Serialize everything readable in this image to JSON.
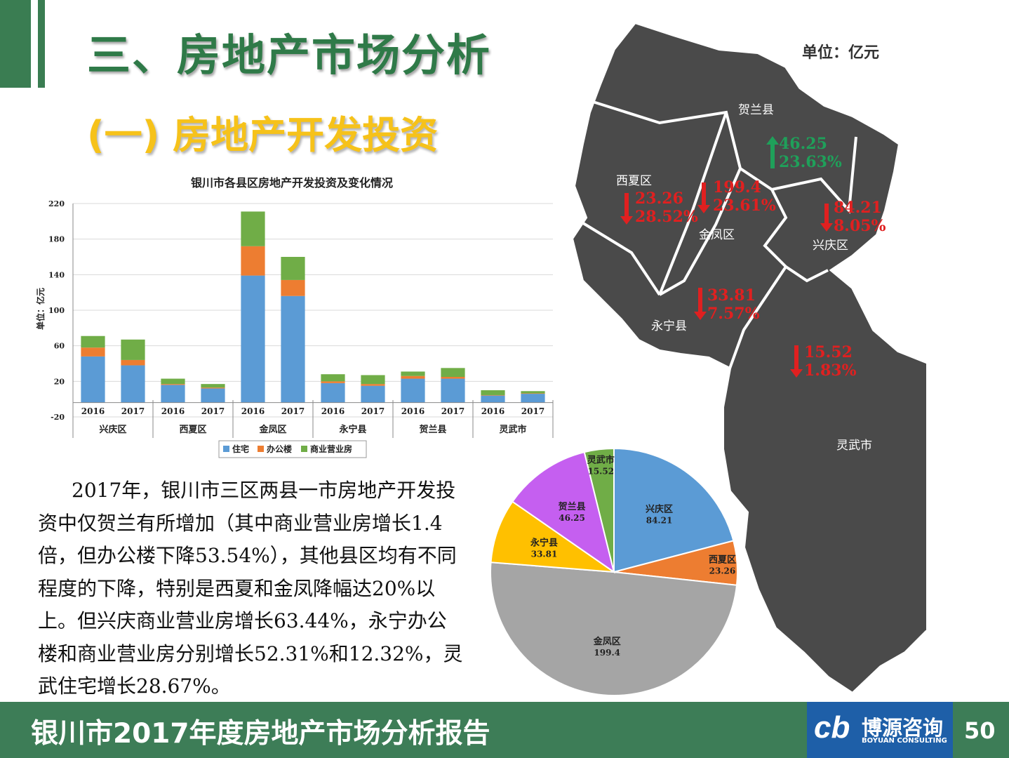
{
  "header": {
    "title": "三、房地产市场分析",
    "subtitle": "(一) 房地产开发投资",
    "unit": "单位：亿元"
  },
  "chart_data": [
    {
      "type": "bar",
      "stacked": true,
      "title": "银川市各县区房地产开发投资及变化情况",
      "ylabel": "单位：亿元",
      "ylim": [
        -20,
        220
      ],
      "yticks": [
        220,
        180,
        140,
        100,
        60,
        20,
        -20
      ],
      "groups": [
        "兴庆区",
        "西夏区",
        "金凤区",
        "永宁县",
        "贺兰县",
        "灵武市"
      ],
      "categories": [
        "2016",
        "2017",
        "2016",
        "2017",
        "2016",
        "2017",
        "2016",
        "2017",
        "2016",
        "2017",
        "2016",
        "2017"
      ],
      "series": [
        {
          "name": "住宅",
          "color": "#5b9bd5",
          "values": [
            52,
            42,
            20,
            16,
            143,
            120,
            22,
            19,
            27,
            27,
            8,
            10
          ]
        },
        {
          "name": "办公楼",
          "color": "#ed7d31",
          "values": [
            10,
            6,
            1,
            1,
            33,
            18,
            2,
            2,
            3,
            2,
            0.5,
            0.5
          ]
        },
        {
          "name": "商业营业房",
          "color": "#70ad47",
          "values": [
            13,
            23,
            6,
            4,
            39,
            26,
            8,
            10,
            5,
            10,
            5.5,
            2.5
          ]
        }
      ],
      "legend": "bottom",
      "grid": true
    },
    {
      "type": "pie",
      "labels": [
        "兴庆区",
        "西夏区",
        "金凤区",
        "永宁县",
        "贺兰县",
        "灵武市"
      ],
      "values": [
        84.21,
        23.26,
        199.4,
        33.81,
        46.25,
        15.52
      ],
      "value_labels": [
        "84.21",
        "23.26",
        "199.4",
        "33.81",
        "46.25",
        "15.52"
      ],
      "colors": [
        "#5b9bd5",
        "#ed7d31",
        "#a5a5a5",
        "#ffc000",
        "#c55ff0",
        "#70ad47"
      ]
    }
  ],
  "map": {
    "regions": [
      {
        "name": "贺兰县",
        "value": "46.25",
        "change": "23.63%",
        "direction": "up"
      },
      {
        "name": "西夏区",
        "value": "23.26",
        "change": "28.52%",
        "direction": "down"
      },
      {
        "name": "金凤区",
        "value": "199.4",
        "change": "23.61%",
        "direction": "down"
      },
      {
        "name": "兴庆区",
        "value": "84.21",
        "change": "8.05%",
        "direction": "down"
      },
      {
        "name": "永宁县",
        "value": "33.81",
        "change": "7.57%",
        "direction": "down"
      },
      {
        "name": "灵武市",
        "value": "15.52",
        "change": "1.83%",
        "direction": "down"
      }
    ],
    "colors": {
      "fill": "#4a4a4a",
      "up": "#1fa05a",
      "down": "#e02020"
    }
  },
  "body_text": "2017年，银川市三区两县一市房地产开发投资中仅贺兰有所增加（其中商业营业房增长1.4倍，但办公楼下降53.54%），其他县区均有不同程度的下降，特别是西夏和金凤降幅达20%以上。但兴庆商业营业房增长63.44%，永宁办公楼和商业营业房分别增长52.31%和12.32%，灵武住宅增长28.67%。",
  "footer": {
    "title": "银川市2017年度房地产市场分析报告",
    "logo_mark": "cb",
    "logo_cn": "博源咨询",
    "logo_en": "BOYUAN CONSULTING",
    "page_number": "50"
  }
}
